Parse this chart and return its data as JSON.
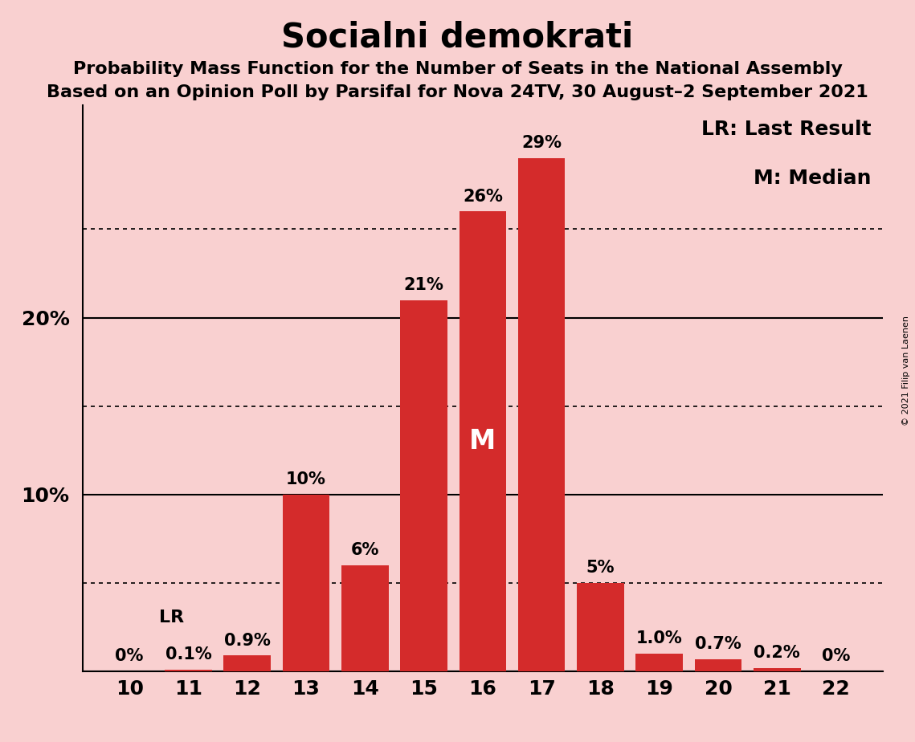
{
  "title": "Socialni demokrati",
  "subtitle1": "Probability Mass Function for the Number of Seats in the National Assembly",
  "subtitle2": "Based on an Opinion Poll by Parsifal for Nova 24TV, 30 August–2 September 2021",
  "copyright": "© 2021 Filip van Laenen",
  "seats": [
    10,
    11,
    12,
    13,
    14,
    15,
    16,
    17,
    18,
    19,
    20,
    21,
    22
  ],
  "probabilities": [
    0.0,
    0.1,
    0.9,
    10.0,
    6.0,
    21.0,
    26.0,
    29.0,
    5.0,
    1.0,
    0.7,
    0.2,
    0.0
  ],
  "bar_labels": [
    "0%",
    "0.1%",
    "0.9%",
    "10%",
    "6%",
    "21%",
    "26%",
    "29%",
    "5%",
    "1.0%",
    "0.7%",
    "0.2%",
    "0%"
  ],
  "bar_color": "#d42b2b",
  "background_color": "#f9d0d0",
  "median_seat": 16,
  "median_label": "M",
  "lr_seat": 10,
  "lr_label": "LR",
  "legend_lr": "LR: Last Result",
  "legend_m": "M: Median",
  "solid_yticks": [
    0,
    10,
    20
  ],
  "dotted_yticks": [
    5,
    15,
    25
  ],
  "ylim_max": 32,
  "title_fontsize": 30,
  "subtitle_fontsize": 16,
  "tick_fontsize": 18,
  "legend_fontsize": 18,
  "bar_label_fontsize": 15,
  "lr_label_fontsize": 16,
  "median_fontsize": 24,
  "copyright_fontsize": 8
}
